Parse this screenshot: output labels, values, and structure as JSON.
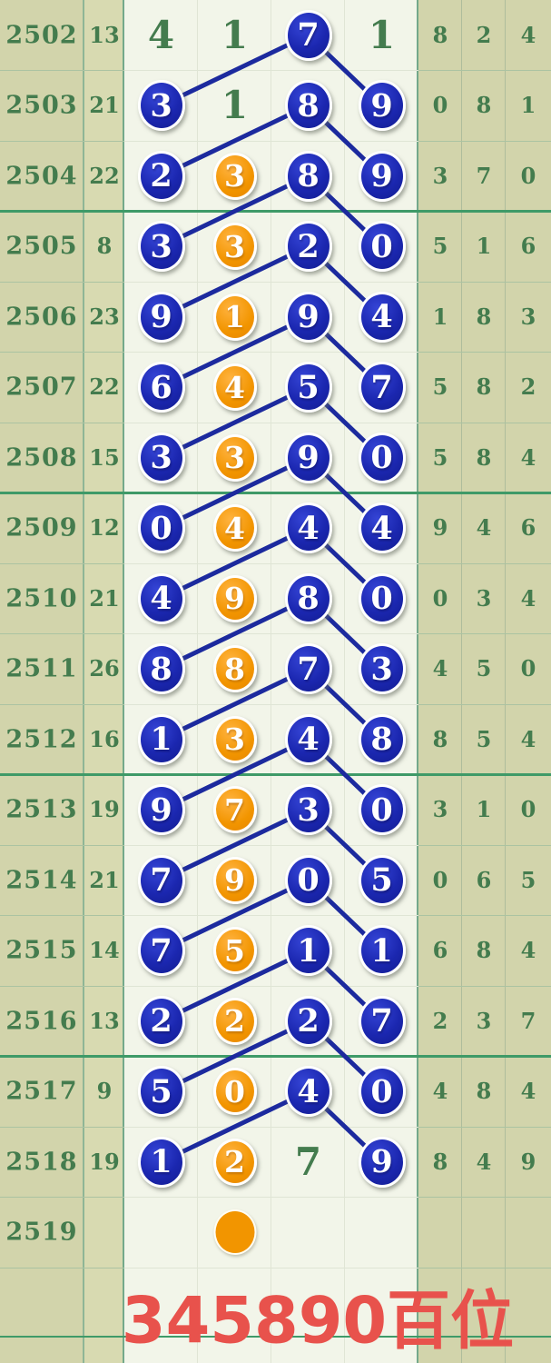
{
  "chart_data": {
    "type": "table",
    "title": "345890百位",
    "rows": [
      {
        "period": "2502",
        "sum": "13",
        "cells": [
          {
            "v": "4",
            "s": "plain"
          },
          {
            "v": "1",
            "s": "plain"
          },
          {
            "v": "7",
            "s": "blue"
          },
          {
            "v": "1",
            "s": "plain"
          }
        ],
        "right": [
          "8",
          "2",
          "4"
        ]
      },
      {
        "period": "2503",
        "sum": "21",
        "cells": [
          {
            "v": "3",
            "s": "blue"
          },
          {
            "v": "1",
            "s": "plain"
          },
          {
            "v": "8",
            "s": "blue"
          },
          {
            "v": "9",
            "s": "blue"
          }
        ],
        "right": [
          "0",
          "8",
          "1"
        ]
      },
      {
        "period": "2504",
        "sum": "22",
        "cells": [
          {
            "v": "2",
            "s": "blue"
          },
          {
            "v": "3",
            "s": "orange"
          },
          {
            "v": "8",
            "s": "blue"
          },
          {
            "v": "9",
            "s": "blue"
          }
        ],
        "right": [
          "3",
          "7",
          "0"
        ]
      },
      {
        "period": "2505",
        "sum": "8",
        "cells": [
          {
            "v": "3",
            "s": "blue"
          },
          {
            "v": "3",
            "s": "orange"
          },
          {
            "v": "2",
            "s": "blue"
          },
          {
            "v": "0",
            "s": "blue"
          }
        ],
        "right": [
          "5",
          "1",
          "6"
        ]
      },
      {
        "period": "2506",
        "sum": "23",
        "cells": [
          {
            "v": "9",
            "s": "blue"
          },
          {
            "v": "1",
            "s": "orange"
          },
          {
            "v": "9",
            "s": "blue"
          },
          {
            "v": "4",
            "s": "blue"
          }
        ],
        "right": [
          "1",
          "8",
          "3"
        ]
      },
      {
        "period": "2507",
        "sum": "22",
        "cells": [
          {
            "v": "6",
            "s": "blue"
          },
          {
            "v": "4",
            "s": "orange"
          },
          {
            "v": "5",
            "s": "blue"
          },
          {
            "v": "7",
            "s": "blue"
          }
        ],
        "right": [
          "5",
          "8",
          "2"
        ]
      },
      {
        "period": "2508",
        "sum": "15",
        "cells": [
          {
            "v": "3",
            "s": "blue"
          },
          {
            "v": "3",
            "s": "orange"
          },
          {
            "v": "9",
            "s": "blue"
          },
          {
            "v": "0",
            "s": "blue"
          }
        ],
        "right": [
          "5",
          "8",
          "4"
        ]
      },
      {
        "period": "2509",
        "sum": "12",
        "cells": [
          {
            "v": "0",
            "s": "blue"
          },
          {
            "v": "4",
            "s": "orange"
          },
          {
            "v": "4",
            "s": "blue"
          },
          {
            "v": "4",
            "s": "blue"
          }
        ],
        "right": [
          "9",
          "4",
          "6"
        ]
      },
      {
        "period": "2510",
        "sum": "21",
        "cells": [
          {
            "v": "4",
            "s": "blue"
          },
          {
            "v": "9",
            "s": "orange"
          },
          {
            "v": "8",
            "s": "blue"
          },
          {
            "v": "0",
            "s": "blue"
          }
        ],
        "right": [
          "0",
          "3",
          "4"
        ]
      },
      {
        "period": "2511",
        "sum": "26",
        "cells": [
          {
            "v": "8",
            "s": "blue"
          },
          {
            "v": "8",
            "s": "orange"
          },
          {
            "v": "7",
            "s": "blue"
          },
          {
            "v": "3",
            "s": "blue"
          }
        ],
        "right": [
          "4",
          "5",
          "0"
        ]
      },
      {
        "period": "2512",
        "sum": "16",
        "cells": [
          {
            "v": "1",
            "s": "blue"
          },
          {
            "v": "3",
            "s": "orange"
          },
          {
            "v": "4",
            "s": "blue"
          },
          {
            "v": "8",
            "s": "blue"
          }
        ],
        "right": [
          "8",
          "5",
          "4"
        ]
      },
      {
        "period": "2513",
        "sum": "19",
        "cells": [
          {
            "v": "9",
            "s": "blue"
          },
          {
            "v": "7",
            "s": "orange"
          },
          {
            "v": "3",
            "s": "blue"
          },
          {
            "v": "0",
            "s": "blue"
          }
        ],
        "right": [
          "3",
          "1",
          "0"
        ]
      },
      {
        "period": "2514",
        "sum": "21",
        "cells": [
          {
            "v": "7",
            "s": "blue"
          },
          {
            "v": "9",
            "s": "orange"
          },
          {
            "v": "0",
            "s": "blue"
          },
          {
            "v": "5",
            "s": "blue"
          }
        ],
        "right": [
          "0",
          "6",
          "5"
        ]
      },
      {
        "period": "2515",
        "sum": "14",
        "cells": [
          {
            "v": "7",
            "s": "blue"
          },
          {
            "v": "5",
            "s": "orange"
          },
          {
            "v": "1",
            "s": "blue"
          },
          {
            "v": "1",
            "s": "blue"
          }
        ],
        "right": [
          "6",
          "8",
          "4"
        ]
      },
      {
        "period": "2516",
        "sum": "13",
        "cells": [
          {
            "v": "2",
            "s": "blue"
          },
          {
            "v": "2",
            "s": "orange"
          },
          {
            "v": "2",
            "s": "blue"
          },
          {
            "v": "7",
            "s": "blue"
          }
        ],
        "right": [
          "2",
          "3",
          "7"
        ]
      },
      {
        "period": "2517",
        "sum": "9",
        "cells": [
          {
            "v": "5",
            "s": "blue"
          },
          {
            "v": "0",
            "s": "orange"
          },
          {
            "v": "4",
            "s": "blue"
          },
          {
            "v": "0",
            "s": "blue"
          }
        ],
        "right": [
          "4",
          "8",
          "4"
        ]
      },
      {
        "period": "2518",
        "sum": "19",
        "cells": [
          {
            "v": "1",
            "s": "blue"
          },
          {
            "v": "2",
            "s": "orange"
          },
          {
            "v": "7",
            "s": "plain"
          },
          {
            "v": "9",
            "s": "blue"
          }
        ],
        "right": [
          "8",
          "4",
          "9"
        ]
      },
      {
        "period": "2519",
        "sum": "",
        "cells": [
          {
            "v": "",
            "s": "empty"
          },
          {
            "v": "",
            "s": "dot"
          },
          {
            "v": "",
            "s": "empty"
          },
          {
            "v": "",
            "s": "empty"
          }
        ],
        "right": [
          "",
          "",
          ""
        ]
      }
    ],
    "group_separators_after": [
      "2504",
      "2508",
      "2512",
      "2516"
    ],
    "connections": [
      [
        "2502",
        2,
        "2503",
        0
      ],
      [
        "2502",
        2,
        "2503",
        3
      ],
      [
        "2503",
        2,
        "2504",
        0
      ],
      [
        "2503",
        2,
        "2504",
        3
      ],
      [
        "2504",
        2,
        "2505",
        0
      ],
      [
        "2504",
        2,
        "2505",
        3
      ],
      [
        "2505",
        2,
        "2506",
        0
      ],
      [
        "2505",
        2,
        "2506",
        3
      ],
      [
        "2506",
        2,
        "2507",
        0
      ],
      [
        "2506",
        2,
        "2507",
        3
      ],
      [
        "2507",
        2,
        "2508",
        0
      ],
      [
        "2507",
        2,
        "2508",
        3
      ],
      [
        "2508",
        2,
        "2509",
        0
      ],
      [
        "2508",
        2,
        "2509",
        3
      ],
      [
        "2509",
        2,
        "2510",
        0
      ],
      [
        "2509",
        2,
        "2510",
        3
      ],
      [
        "2510",
        2,
        "2511",
        0
      ],
      [
        "2510",
        2,
        "2511",
        3
      ],
      [
        "2511",
        2,
        "2512",
        0
      ],
      [
        "2511",
        2,
        "2512",
        3
      ],
      [
        "2512",
        2,
        "2513",
        0
      ],
      [
        "2512",
        2,
        "2513",
        3
      ],
      [
        "2513",
        2,
        "2514",
        0
      ],
      [
        "2513",
        2,
        "2514",
        3
      ],
      [
        "2514",
        2,
        "2515",
        0
      ],
      [
        "2514",
        2,
        "2515",
        3
      ],
      [
        "2515",
        2,
        "2516",
        0
      ],
      [
        "2515",
        2,
        "2516",
        3
      ],
      [
        "2516",
        2,
        "2517",
        0
      ],
      [
        "2516",
        2,
        "2517",
        3
      ],
      [
        "2517",
        2,
        "2518",
        0
      ],
      [
        "2517",
        2,
        "2518",
        3
      ]
    ]
  },
  "colors": {
    "page_bg": "#d2d4ab",
    "sum_col_bg": "#d8dab1",
    "chart_bg": "#f2f5e9",
    "ball_blue": "#1b27b0",
    "ball_orange": "#f29500",
    "ball_text": "#ffffff",
    "trend_line": "#1c2a9e",
    "green_text": "#447c4e",
    "group_line": "#3f9a68",
    "chart_border": "#74a98b",
    "title_red": "#e8524c"
  }
}
